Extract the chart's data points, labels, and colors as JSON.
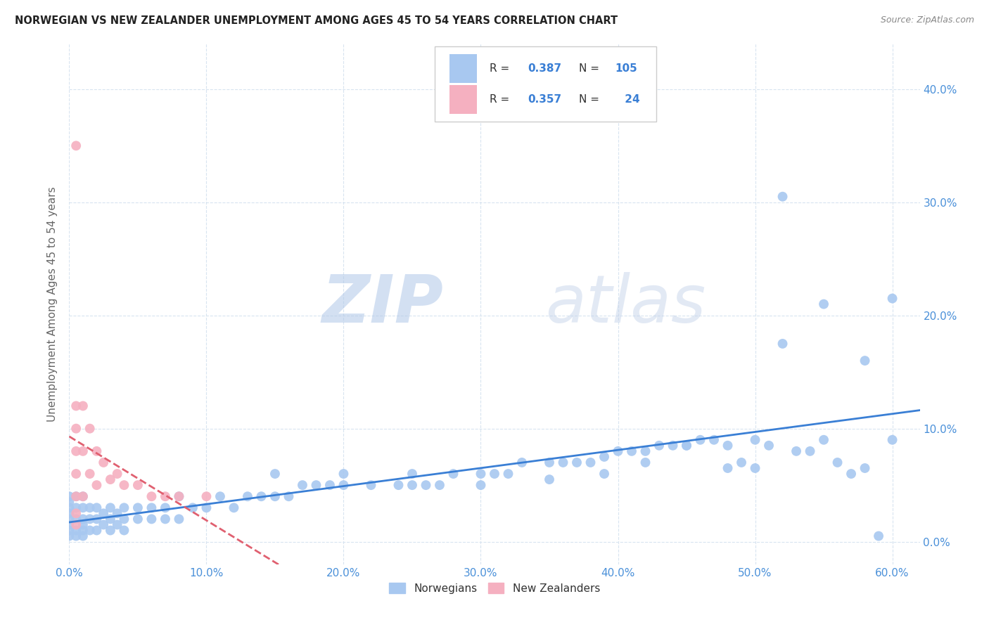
{
  "title": "NORWEGIAN VS NEW ZEALANDER UNEMPLOYMENT AMONG AGES 45 TO 54 YEARS CORRELATION CHART",
  "source": "Source: ZipAtlas.com",
  "ylabel": "Unemployment Among Ages 45 to 54 years",
  "xlim": [
    0.0,
    0.62
  ],
  "ylim": [
    -0.02,
    0.44
  ],
  "xticks": [
    0.0,
    0.1,
    0.2,
    0.3,
    0.4,
    0.5,
    0.6
  ],
  "yticks": [
    0.0,
    0.1,
    0.2,
    0.3,
    0.4
  ],
  "norwegian_color": "#a8c8f0",
  "nz_color": "#f5b0c0",
  "trendline_norwegian_color": "#3a7fd5",
  "trendline_nz_color": "#e06070",
  "R_norwegian": 0.387,
  "N_norwegian": 105,
  "R_nz": 0.357,
  "N_nz": 24,
  "watermark_zip": "ZIP",
  "watermark_atlas": "atlas",
  "background_color": "#ffffff",
  "grid_color": "#d8e4f0",
  "axis_label_color": "#4a90d9",
  "ylabel_color": "#666666",
  "nor_x": [
    0.0,
    0.0,
    0.0,
    0.0,
    0.0,
    0.0,
    0.0,
    0.0,
    0.005,
    0.005,
    0.005,
    0.005,
    0.005,
    0.01,
    0.01,
    0.01,
    0.01,
    0.01,
    0.01,
    0.015,
    0.015,
    0.015,
    0.02,
    0.02,
    0.02,
    0.025,
    0.025,
    0.03,
    0.03,
    0.03,
    0.035,
    0.035,
    0.04,
    0.04,
    0.04,
    0.05,
    0.05,
    0.06,
    0.06,
    0.07,
    0.07,
    0.08,
    0.08,
    0.09,
    0.1,
    0.11,
    0.12,
    0.13,
    0.14,
    0.15,
    0.16,
    0.17,
    0.18,
    0.19,
    0.2,
    0.22,
    0.24,
    0.25,
    0.26,
    0.27,
    0.28,
    0.3,
    0.31,
    0.32,
    0.33,
    0.35,
    0.36,
    0.37,
    0.38,
    0.39,
    0.4,
    0.41,
    0.42,
    0.43,
    0.44,
    0.45,
    0.46,
    0.47,
    0.48,
    0.49,
    0.5,
    0.51,
    0.52,
    0.53,
    0.54,
    0.55,
    0.56,
    0.57,
    0.58,
    0.59,
    0.6,
    0.6,
    0.58,
    0.55,
    0.52,
    0.5,
    0.48,
    0.45,
    0.42,
    0.39,
    0.35,
    0.3,
    0.25,
    0.2,
    0.15
  ],
  "nor_y": [
    0.005,
    0.01,
    0.015,
    0.02,
    0.025,
    0.03,
    0.035,
    0.04,
    0.005,
    0.01,
    0.02,
    0.03,
    0.04,
    0.005,
    0.01,
    0.015,
    0.02,
    0.03,
    0.04,
    0.01,
    0.02,
    0.03,
    0.01,
    0.02,
    0.03,
    0.015,
    0.025,
    0.01,
    0.02,
    0.03,
    0.015,
    0.025,
    0.01,
    0.02,
    0.03,
    0.02,
    0.03,
    0.02,
    0.03,
    0.02,
    0.03,
    0.02,
    0.04,
    0.03,
    0.03,
    0.04,
    0.03,
    0.04,
    0.04,
    0.04,
    0.04,
    0.05,
    0.05,
    0.05,
    0.05,
    0.05,
    0.05,
    0.06,
    0.05,
    0.05,
    0.06,
    0.06,
    0.06,
    0.06,
    0.07,
    0.07,
    0.07,
    0.07,
    0.07,
    0.075,
    0.08,
    0.08,
    0.08,
    0.085,
    0.085,
    0.085,
    0.09,
    0.09,
    0.085,
    0.07,
    0.09,
    0.085,
    0.305,
    0.08,
    0.08,
    0.21,
    0.07,
    0.06,
    0.065,
    0.005,
    0.09,
    0.215,
    0.16,
    0.09,
    0.175,
    0.065,
    0.065,
    0.085,
    0.07,
    0.06,
    0.055,
    0.05,
    0.05,
    0.06,
    0.06
  ],
  "nz_x": [
    0.005,
    0.005,
    0.005,
    0.005,
    0.005,
    0.005,
    0.005,
    0.005,
    0.01,
    0.01,
    0.01,
    0.015,
    0.015,
    0.02,
    0.02,
    0.025,
    0.03,
    0.035,
    0.04,
    0.05,
    0.06,
    0.07,
    0.08,
    0.1
  ],
  "nz_y": [
    0.35,
    0.12,
    0.1,
    0.08,
    0.06,
    0.04,
    0.025,
    0.015,
    0.12,
    0.08,
    0.04,
    0.1,
    0.06,
    0.08,
    0.05,
    0.07,
    0.055,
    0.06,
    0.05,
    0.05,
    0.04,
    0.04,
    0.04,
    0.04
  ]
}
